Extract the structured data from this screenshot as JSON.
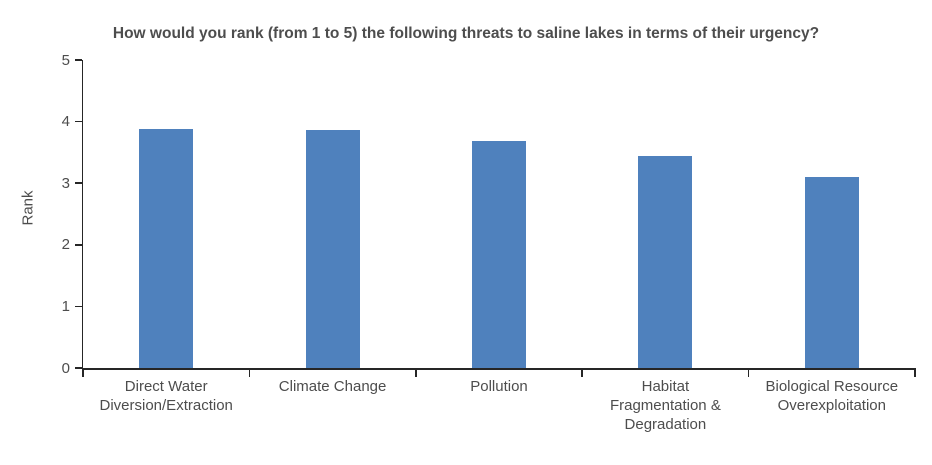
{
  "chart_data": {
    "type": "bar",
    "title": "How would you rank (from 1 to 5) the following threats to saline lakes in terms of their urgency?",
    "ylabel": "Rank",
    "xlabel": "",
    "categories": [
      "Direct Water Diversion/Extraction",
      "Climate Change",
      "Pollution",
      "Habitat Fragmentation & Degradation",
      "Biological Resource Overexploitation"
    ],
    "category_label_lines": [
      [
        "Direct Water",
        "Diversion/Extraction"
      ],
      [
        "Climate Change"
      ],
      [
        "Pollution"
      ],
      [
        "Habitat",
        "Fragmentation &",
        "Degradation"
      ],
      [
        "Biological Resource",
        "Overexploitation"
      ]
    ],
    "values": [
      3.88,
      3.86,
      3.69,
      3.44,
      3.1
    ],
    "ylim": [
      0,
      5
    ],
    "yticks": [
      0,
      1,
      2,
      3,
      4,
      5
    ],
    "grid": false,
    "legend": "none",
    "colors": {
      "bar": "#4F81BD",
      "text": "#4D4D4D",
      "axis": "#262626"
    }
  }
}
